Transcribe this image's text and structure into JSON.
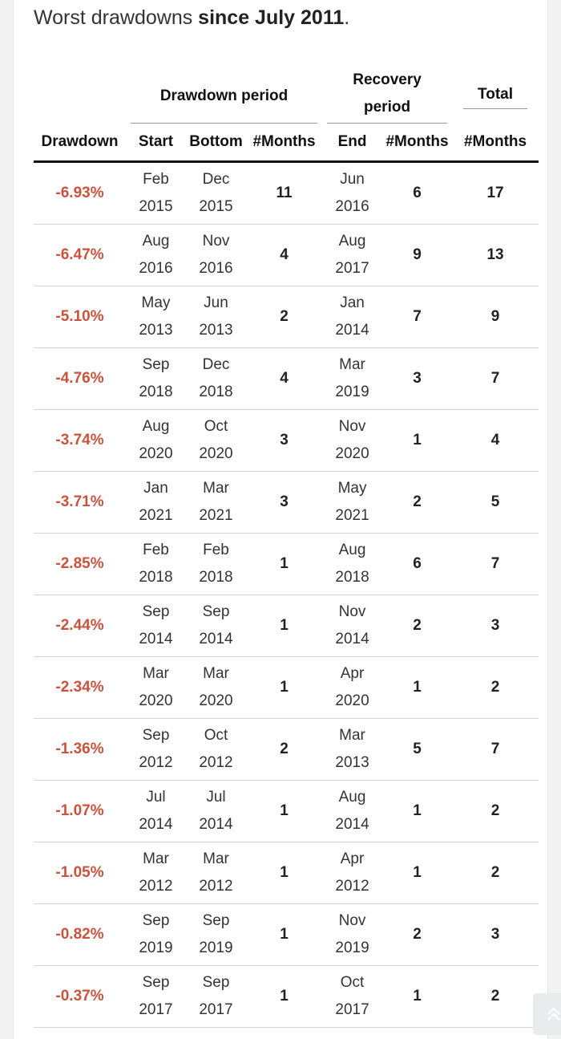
{
  "heading": {
    "prefix": "Worst drawdowns ",
    "bold": "since July 2011",
    "suffix": "."
  },
  "groups": {
    "drawdown_period": "Drawdown period",
    "recovery_period_line1": "Recovery",
    "recovery_period_line2": "period",
    "total": "Total"
  },
  "columns": [
    "Drawdown",
    "Start",
    "Bottom",
    "#Months",
    "End",
    "#Months",
    "#Months"
  ],
  "rows": [
    {
      "drawdown": "-6.93%",
      "start_m": "Feb",
      "start_y": "2015",
      "bottom_m": "Dec",
      "bottom_y": "2015",
      "dd_months": "11",
      "end_m": "Jun",
      "end_y": "2016",
      "rec_months": "6",
      "total": "17"
    },
    {
      "drawdown": "-6.47%",
      "start_m": "Aug",
      "start_y": "2016",
      "bottom_m": "Nov",
      "bottom_y": "2016",
      "dd_months": "4",
      "end_m": "Aug",
      "end_y": "2017",
      "rec_months": "9",
      "total": "13"
    },
    {
      "drawdown": "-5.10%",
      "start_m": "May",
      "start_y": "2013",
      "bottom_m": "Jun",
      "bottom_y": "2013",
      "dd_months": "2",
      "end_m": "Jan",
      "end_y": "2014",
      "rec_months": "7",
      "total": "9"
    },
    {
      "drawdown": "-4.76%",
      "start_m": "Sep",
      "start_y": "2018",
      "bottom_m": "Dec",
      "bottom_y": "2018",
      "dd_months": "4",
      "end_m": "Mar",
      "end_y": "2019",
      "rec_months": "3",
      "total": "7"
    },
    {
      "drawdown": "-3.74%",
      "start_m": "Aug",
      "start_y": "2020",
      "bottom_m": "Oct",
      "bottom_y": "2020",
      "dd_months": "3",
      "end_m": "Nov",
      "end_y": "2020",
      "rec_months": "1",
      "total": "4"
    },
    {
      "drawdown": "-3.71%",
      "start_m": "Jan",
      "start_y": "2021",
      "bottom_m": "Mar",
      "bottom_y": "2021",
      "dd_months": "3",
      "end_m": "May",
      "end_y": "2021",
      "rec_months": "2",
      "total": "5"
    },
    {
      "drawdown": "-2.85%",
      "start_m": "Feb",
      "start_y": "2018",
      "bottom_m": "Feb",
      "bottom_y": "2018",
      "dd_months": "1",
      "end_m": "Aug",
      "end_y": "2018",
      "rec_months": "6",
      "total": "7"
    },
    {
      "drawdown": "-2.44%",
      "start_m": "Sep",
      "start_y": "2014",
      "bottom_m": "Sep",
      "bottom_y": "2014",
      "dd_months": "1",
      "end_m": "Nov",
      "end_y": "2014",
      "rec_months": "2",
      "total": "3"
    },
    {
      "drawdown": "-2.34%",
      "start_m": "Mar",
      "start_y": "2020",
      "bottom_m": "Mar",
      "bottom_y": "2020",
      "dd_months": "1",
      "end_m": "Apr",
      "end_y": "2020",
      "rec_months": "1",
      "total": "2"
    },
    {
      "drawdown": "-1.36%",
      "start_m": "Sep",
      "start_y": "2012",
      "bottom_m": "Oct",
      "bottom_y": "2012",
      "dd_months": "2",
      "end_m": "Mar",
      "end_y": "2013",
      "rec_months": "5",
      "total": "7"
    },
    {
      "drawdown": "-1.07%",
      "start_m": "Jul",
      "start_y": "2014",
      "bottom_m": "Jul",
      "bottom_y": "2014",
      "dd_months": "1",
      "end_m": "Aug",
      "end_y": "2014",
      "rec_months": "1",
      "total": "2"
    },
    {
      "drawdown": "-1.05%",
      "start_m": "Mar",
      "start_y": "2012",
      "bottom_m": "Mar",
      "bottom_y": "2012",
      "dd_months": "1",
      "end_m": "Apr",
      "end_y": "2012",
      "rec_months": "1",
      "total": "2"
    },
    {
      "drawdown": "-0.82%",
      "start_m": "Sep",
      "start_y": "2019",
      "bottom_m": "Sep",
      "bottom_y": "2019",
      "dd_months": "1",
      "end_m": "Nov",
      "end_y": "2019",
      "rec_months": "2",
      "total": "3"
    },
    {
      "drawdown": "-0.37%",
      "start_m": "Sep",
      "start_y": "2017",
      "bottom_m": "Sep",
      "bottom_y": "2017",
      "dd_months": "1",
      "end_m": "Oct",
      "end_y": "2017",
      "rec_months": "1",
      "total": "2"
    }
  ],
  "colors": {
    "drawdown_value": "#c9533d",
    "rule": "#111111",
    "row_border": "#d4d4d4"
  },
  "scroll_button": {
    "icon": "double-chevron-up-icon"
  }
}
